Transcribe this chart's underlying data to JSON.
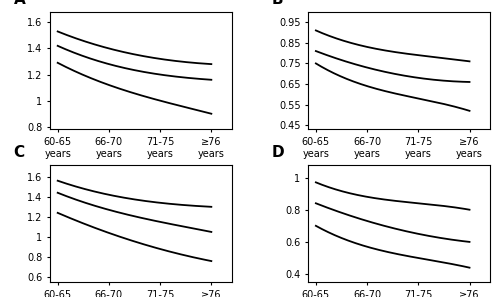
{
  "x_labels": [
    "60-65\nyears",
    "66-70\nyears",
    "71-75\nyears",
    "≥76\nyears"
  ],
  "x_positions": [
    0,
    1,
    2,
    3
  ],
  "panel_labels": [
    "A",
    "B",
    "C",
    "D"
  ],
  "panels": {
    "A": {
      "ylim": [
        0.78,
        1.68
      ],
      "yticks": [
        0.8,
        1.0,
        1.2,
        1.4,
        1.6
      ],
      "ytick_labels": [
        "0.8",
        "1",
        "1.2",
        "1.4",
        "1.6"
      ],
      "curves": [
        [
          1.53,
          1.4,
          1.32,
          1.28
        ],
        [
          1.42,
          1.28,
          1.2,
          1.16
        ],
        [
          1.29,
          1.12,
          1.0,
          0.9
        ]
      ]
    },
    "B": {
      "ylim": [
        0.43,
        1.0
      ],
      "yticks": [
        0.45,
        0.55,
        0.65,
        0.75,
        0.85,
        0.95
      ],
      "ytick_labels": [
        "0.45",
        "0.55",
        "0.65",
        "0.75",
        "0.85",
        "0.95"
      ],
      "curves": [
        [
          0.91,
          0.83,
          0.79,
          0.76
        ],
        [
          0.81,
          0.73,
          0.68,
          0.66
        ],
        [
          0.75,
          0.64,
          0.58,
          0.52
        ]
      ]
    },
    "C": {
      "ylim": [
        0.55,
        1.72
      ],
      "yticks": [
        0.6,
        0.8,
        1.0,
        1.2,
        1.4,
        1.6
      ],
      "ytick_labels": [
        "0.6",
        "0.8",
        "1",
        "1.2",
        "1.4",
        "1.6"
      ],
      "curves": [
        [
          1.56,
          1.42,
          1.34,
          1.3
        ],
        [
          1.44,
          1.27,
          1.15,
          1.05
        ],
        [
          1.24,
          1.04,
          0.88,
          0.76
        ]
      ]
    },
    "D": {
      "ylim": [
        0.35,
        1.08
      ],
      "yticks": [
        0.4,
        0.6,
        0.8,
        1.0
      ],
      "ytick_labels": [
        "0.4",
        "0.6",
        "0.8",
        "1"
      ],
      "curves": [
        [
          0.97,
          0.88,
          0.84,
          0.8
        ],
        [
          0.84,
          0.73,
          0.65,
          0.6
        ],
        [
          0.7,
          0.57,
          0.5,
          0.44
        ]
      ]
    }
  },
  "line_color": "black",
  "line_width": 1.3,
  "background_color": "white",
  "tick_fontsize": 7.0,
  "panel_label_fontsize": 11
}
